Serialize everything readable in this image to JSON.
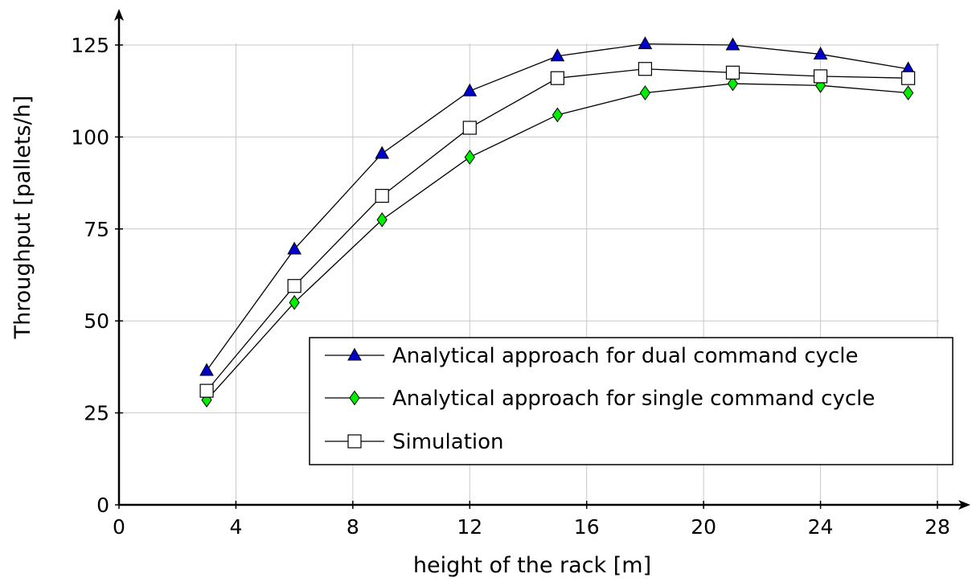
{
  "chart_data": {
    "type": "line",
    "xlabel": "height of the rack [m]",
    "ylabel": "Throughput [pallets/h]",
    "xlim": [
      0,
      28
    ],
    "ylim": [
      0,
      125
    ],
    "xticks": [
      "0",
      "4",
      "8",
      "12",
      "16",
      "20",
      "24",
      "28"
    ],
    "yticks": [
      "0",
      "25",
      "50",
      "75",
      "100",
      "125"
    ],
    "grid": true,
    "legend_position": "bottom-right",
    "x": [
      3,
      6,
      9,
      12,
      15,
      18,
      21,
      24,
      27
    ],
    "series": [
      {
        "name": "Analytical approach for dual command cycle",
        "marker": "triangle",
        "color": "#0000cc",
        "values": [
          36.5,
          69.5,
          95.5,
          112.5,
          122,
          125.3,
          125,
          122.5,
          118.5
        ]
      },
      {
        "name": "Analytical approach for single command cycle",
        "marker": "diamond",
        "color": "#00ee00",
        "values": [
          28.5,
          55,
          77.5,
          94.5,
          106,
          112,
          114.5,
          114,
          112
        ]
      },
      {
        "name": "Simulation",
        "marker": "square",
        "color": "#ffffff",
        "values": [
          31,
          59.5,
          84,
          102.5,
          116,
          118.5,
          117.5,
          116.5,
          116
        ]
      }
    ]
  }
}
